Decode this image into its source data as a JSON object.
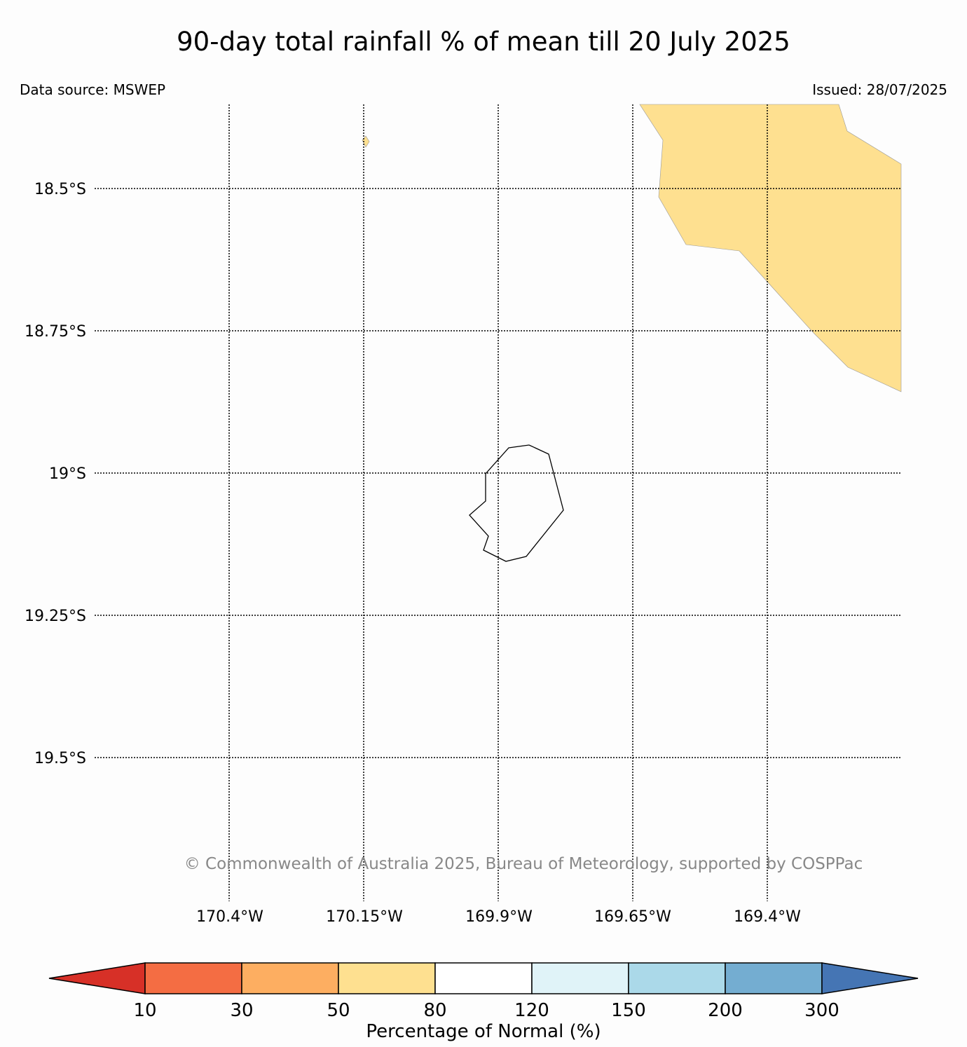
{
  "title": "90-day total rainfall % of mean till 20 July 2025",
  "data_source": "Data source: MSWEP",
  "issued": "Issued: 28/07/2025",
  "copyright": "© Commonwealth of Australia 2025, Bureau of Meteorology, supported by COSPPac",
  "lat_labels": [
    "18.5°S",
    "18.75°S",
    "19°S",
    "19.25°S",
    "19.5°S"
  ],
  "lon_labels": [
    "170.4°W",
    "170.15°W",
    "169.9°W",
    "169.65°W",
    "169.4°W"
  ],
  "colorbar": {
    "label": "Percentage of Normal (%)",
    "ticks": [
      "10",
      "30",
      "50",
      "80",
      "120",
      "150",
      "200",
      "300"
    ],
    "colors": [
      "#d73027",
      "#f46d43",
      "#fdae61",
      "#fee090",
      "#ffffff",
      "#e0f3f8",
      "#abd9e9",
      "#74add1",
      "#4575b4"
    ]
  },
  "shaded_area_color": "#fee090"
}
